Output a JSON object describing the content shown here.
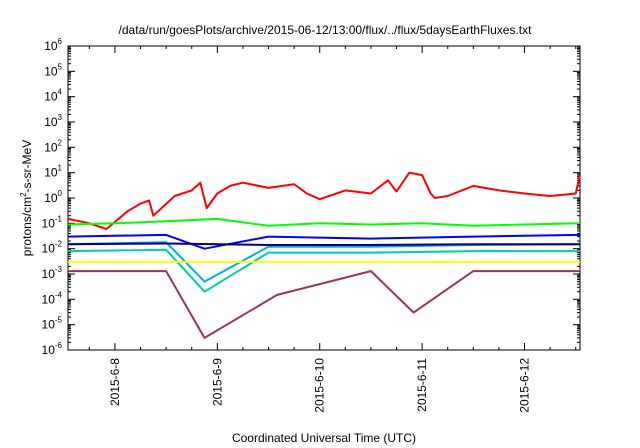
{
  "chart_data": {
    "type": "line",
    "title": "/data/run/goesPlots/archive/2015-06-12/13:00/flux/../flux/5daysEarthFluxes.txt",
    "xlabel": "Coordinated Universal Time (UTC)",
    "ylabel_parts": {
      "pre": "protons/cm",
      "sup": "2",
      "post": "-s-sr-MeV"
    },
    "yscale": "log",
    "ylim": [
      1e-06,
      1000000.0
    ],
    "y_ticks": [
      {
        "base": "10",
        "exp": "-6",
        "value": 1e-06
      },
      {
        "base": "10",
        "exp": "-5",
        "value": 1e-05
      },
      {
        "base": "10",
        "exp": "-4",
        "value": 0.0001
      },
      {
        "base": "10",
        "exp": "-3",
        "value": 0.001
      },
      {
        "base": "10",
        "exp": "-2",
        "value": 0.01
      },
      {
        "base": "10",
        "exp": "-1",
        "value": 0.1
      },
      {
        "base": "10",
        "exp": "0",
        "value": 1
      },
      {
        "base": "10",
        "exp": "1",
        "value": 10
      },
      {
        "base": "10",
        "exp": "2",
        "value": 100
      },
      {
        "base": "10",
        "exp": "3",
        "value": 1000
      },
      {
        "base": "10",
        "exp": "4",
        "value": 10000
      },
      {
        "base": "10",
        "exp": "5",
        "value": 100000
      },
      {
        "base": "10",
        "exp": "6",
        "value": 1000000
      }
    ],
    "xlim": [
      "2015-06-07 13:00",
      "2015-06-12 13:00"
    ],
    "x_ticks": [
      "2015-6-8",
      "2015-6-9",
      "2015-6-10",
      "2015-6-11",
      "2015-6-12"
    ],
    "grid": false,
    "legend": "none",
    "colors": [
      "#ff0000",
      "#00ff00",
      "#0000ff",
      "#00aaff",
      "#00ccaa",
      "#ffff00",
      "#993366",
      "#000080"
    ],
    "series": [
      {
        "color": "#ff0000",
        "x": [
          "2015-06-07 13:00",
          "2015-06-07 18:00",
          "2015-06-07 22:00",
          "2015-06-08 03:00",
          "2015-06-08 06:00",
          "2015-06-08 08:00",
          "2015-06-08 09:00",
          "2015-06-08 14:00",
          "2015-06-08 18:00",
          "2015-06-08 20:00",
          "2015-06-08 21:30",
          "2015-06-09 00:00",
          "2015-06-09 03:00",
          "2015-06-09 06:00",
          "2015-06-09 12:00",
          "2015-06-09 18:00",
          "2015-06-09 21:00",
          "2015-06-10 00:00",
          "2015-06-10 06:00",
          "2015-06-10 12:00",
          "2015-06-10 16:00",
          "2015-06-10 18:00",
          "2015-06-10 21:00",
          "2015-06-11 00:00",
          "2015-06-11 02:00",
          "2015-06-11 03:00",
          "2015-06-11 06:00",
          "2015-06-11 12:00",
          "2015-06-11 18:00",
          "2015-06-12 00:00",
          "2015-06-12 06:00",
          "2015-06-12 12:00",
          "2015-06-12 13:00"
        ],
        "y": [
          0.15,
          0.1,
          0.06,
          0.3,
          0.6,
          0.8,
          0.2,
          1.2,
          2.0,
          4.0,
          0.4,
          1.5,
          3.0,
          4.0,
          2.5,
          3.5,
          1.5,
          0.9,
          2.0,
          1.5,
          5.0,
          1.8,
          10.0,
          8.0,
          1.5,
          1.0,
          1.2,
          3.0,
          2.0,
          1.5,
          1.2,
          1.5,
          8.0
        ]
      },
      {
        "color": "#00ff00",
        "x": [
          "2015-06-07 13:00",
          "2015-06-08 00:00",
          "2015-06-08 12:00",
          "2015-06-09 00:00",
          "2015-06-09 12:00",
          "2015-06-10 00:00",
          "2015-06-10 12:00",
          "2015-06-11 00:00",
          "2015-06-11 12:00",
          "2015-06-12 00:00",
          "2015-06-12 13:00"
        ],
        "y": [
          0.09,
          0.1,
          0.12,
          0.15,
          0.08,
          0.1,
          0.09,
          0.1,
          0.08,
          0.09,
          0.1
        ]
      },
      {
        "color": "#0000ff",
        "x": [
          "2015-06-07 13:00",
          "2015-06-08 12:00",
          "2015-06-08 21:00",
          "2015-06-09 12:00",
          "2015-06-10 12:00",
          "2015-06-11 12:00",
          "2015-06-12 13:00"
        ],
        "y": [
          0.03,
          0.035,
          0.01,
          0.03,
          0.025,
          0.03,
          0.035
        ]
      },
      {
        "color": "#00aaff",
        "x": [
          "2015-06-07 13:00",
          "2015-06-08 12:00",
          "2015-06-08 21:00",
          "2015-06-09 12:00",
          "2015-06-10 12:00",
          "2015-06-11 12:00",
          "2015-06-12 13:00"
        ],
        "y": [
          0.015,
          0.018,
          0.0005,
          0.012,
          0.012,
          0.014,
          0.015
        ]
      },
      {
        "color": "#00ccaa",
        "x": [
          "2015-06-07 13:00",
          "2015-06-08 12:00",
          "2015-06-08 21:00",
          "2015-06-09 12:00",
          "2015-06-10 12:00",
          "2015-06-11 12:00",
          "2015-06-12 13:00"
        ],
        "y": [
          0.008,
          0.009,
          0.0002,
          0.007,
          0.007,
          0.008,
          0.008
        ]
      },
      {
        "color": "#ffff00",
        "x": [
          "2015-06-07 13:00",
          "2015-06-08 12:00",
          "2015-06-09 12:00",
          "2015-06-10 12:00",
          "2015-06-11 12:00",
          "2015-06-12 13:00"
        ],
        "y": [
          0.003,
          0.003,
          0.003,
          0.003,
          0.003,
          0.003
        ]
      },
      {
        "color": "#993366",
        "x": [
          "2015-06-07 13:00",
          "2015-06-08 12:00",
          "2015-06-08 21:00",
          "2015-06-09 14:00",
          "2015-06-10 12:00",
          "2015-06-10 22:00",
          "2015-06-11 12:00",
          "2015-06-12 13:00"
        ],
        "y": [
          0.0013,
          0.0013,
          3e-06,
          0.00015,
          0.0013,
          3e-05,
          0.0013,
          0.0013
        ]
      },
      {
        "color": "#000080",
        "x": [
          "2015-06-07 13:00",
          "2015-06-08 12:00",
          "2015-06-09 12:00",
          "2015-06-10 12:00",
          "2015-06-11 12:00",
          "2015-06-12 13:00"
        ],
        "y": [
          0.015,
          0.016,
          0.014,
          0.014,
          0.015,
          0.015
        ]
      }
    ]
  }
}
